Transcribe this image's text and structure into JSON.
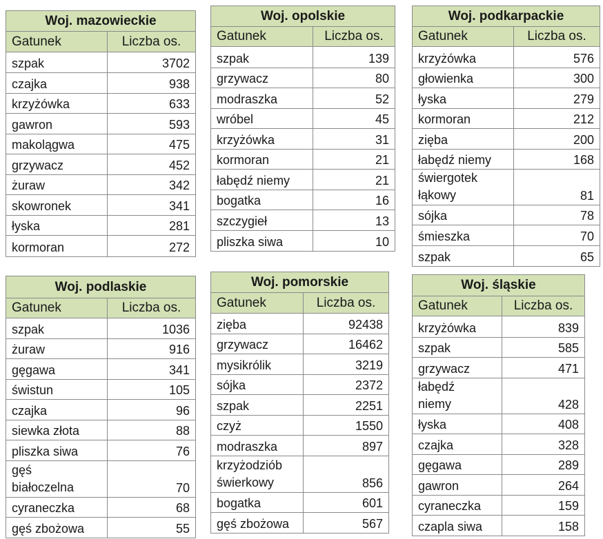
{
  "tables": [
    {
      "id": "mazowieckie",
      "title": "Woj. mazowieckie",
      "col1": "Gatunek",
      "col2": "Liczba os.",
      "rows": [
        {
          "species": "szpak",
          "count": "3702"
        },
        {
          "species": "czajka",
          "count": "938"
        },
        {
          "species": "krzyżówka",
          "count": "633"
        },
        {
          "species": "gawron",
          "count": "593"
        },
        {
          "species": "makolągwa",
          "count": "475"
        },
        {
          "species": "grzywacz",
          "count": "452"
        },
        {
          "species": "żuraw",
          "count": "342"
        },
        {
          "species": "skowronek",
          "count": "341"
        },
        {
          "species": "łyska",
          "count": "281"
        },
        {
          "species": "kormoran",
          "count": "272"
        }
      ]
    },
    {
      "id": "opolskie",
      "title": "Woj. opolskie",
      "col1": "Gatunek",
      "col2": "Liczba os.",
      "rows": [
        {
          "species": "szpak",
          "count": "139"
        },
        {
          "species": "grzywacz",
          "count": "80"
        },
        {
          "species": "modraszka",
          "count": "52"
        },
        {
          "species": "wróbel",
          "count": "45"
        },
        {
          "species": "krzyżówka",
          "count": "31"
        },
        {
          "species": "kormoran",
          "count": "21"
        },
        {
          "species": "łabędź niemy",
          "count": "21"
        },
        {
          "species": "bogatka",
          "count": "16"
        },
        {
          "species": "szczygieł",
          "count": "13"
        },
        {
          "species": "pliszka siwa",
          "count": "10"
        }
      ]
    },
    {
      "id": "podkarpackie",
      "title": "Woj. podkarpackie",
      "col1": "Gatunek",
      "col2": "Liczba os.",
      "rows": [
        {
          "species": "krzyżówka",
          "count": "576"
        },
        {
          "species": "głowienka",
          "count": "300"
        },
        {
          "species": "łyska",
          "count": "279"
        },
        {
          "species": "kormoran",
          "count": "212"
        },
        {
          "species": "zięba",
          "count": "200"
        },
        {
          "species": "łabędź niemy",
          "count": "168"
        },
        {
          "species": "świergotek\nłąkowy",
          "count": "81"
        },
        {
          "species": "sójka",
          "count": "78"
        },
        {
          "species": "śmieszka",
          "count": "70"
        },
        {
          "species": "szpak",
          "count": "65"
        }
      ]
    },
    {
      "id": "podlaskie",
      "title": "Woj. podlaskie",
      "col1": "Gatunek",
      "col2": "Liczba os.",
      "rows": [
        {
          "species": "szpak",
          "count": "1036"
        },
        {
          "species": "żuraw",
          "count": "916"
        },
        {
          "species": "gęgawa",
          "count": "341"
        },
        {
          "species": "świstun",
          "count": "105"
        },
        {
          "species": "czajka",
          "count": "96"
        },
        {
          "species": "siewka złota",
          "count": "88"
        },
        {
          "species": "pliszka siwa",
          "count": "76"
        },
        {
          "species": "gęś\nbiałoczelna",
          "count": "70"
        },
        {
          "species": "cyraneczka",
          "count": "68"
        },
        {
          "species": "gęś zbożowa",
          "count": "55"
        }
      ]
    },
    {
      "id": "pomorskie",
      "title": "Woj. pomorskie",
      "col1": "Gatunek",
      "col2": "Liczba os.",
      "rows": [
        {
          "species": "zięba",
          "count": "92438"
        },
        {
          "species": "grzywacz",
          "count": "16462"
        },
        {
          "species": "mysikrólik",
          "count": "3219"
        },
        {
          "species": "sójka",
          "count": "2372"
        },
        {
          "species": "szpak",
          "count": "2251"
        },
        {
          "species": "czyż",
          "count": "1550"
        },
        {
          "species": "modraszka",
          "count": "897"
        },
        {
          "species": "krzyżodziób\nświerkowy",
          "count": "856"
        },
        {
          "species": "bogatka",
          "count": "601"
        },
        {
          "species": "gęś zbożowa",
          "count": "567"
        }
      ]
    },
    {
      "id": "slaskie",
      "title": "Woj. śląskie",
      "col1": "Gatunek",
      "col2": "Liczba os.",
      "rows": [
        {
          "species": "krzyżówka",
          "count": "839"
        },
        {
          "species": "szpak",
          "count": "585"
        },
        {
          "species": "grzywacz",
          "count": "471"
        },
        {
          "species": "łabędź\nniemy",
          "count": "428"
        },
        {
          "species": "łyska",
          "count": "408"
        },
        {
          "species": "czajka",
          "count": "328"
        },
        {
          "species": "gęgawa",
          "count": "289"
        },
        {
          "species": "gawron",
          "count": "264"
        },
        {
          "species": "cyraneczka",
          "count": "159"
        },
        {
          "species": "czapla siwa",
          "count": "158"
        }
      ]
    }
  ],
  "colors": {
    "header_bg": "#d3e1b5",
    "border": "#8a8a8a"
  }
}
